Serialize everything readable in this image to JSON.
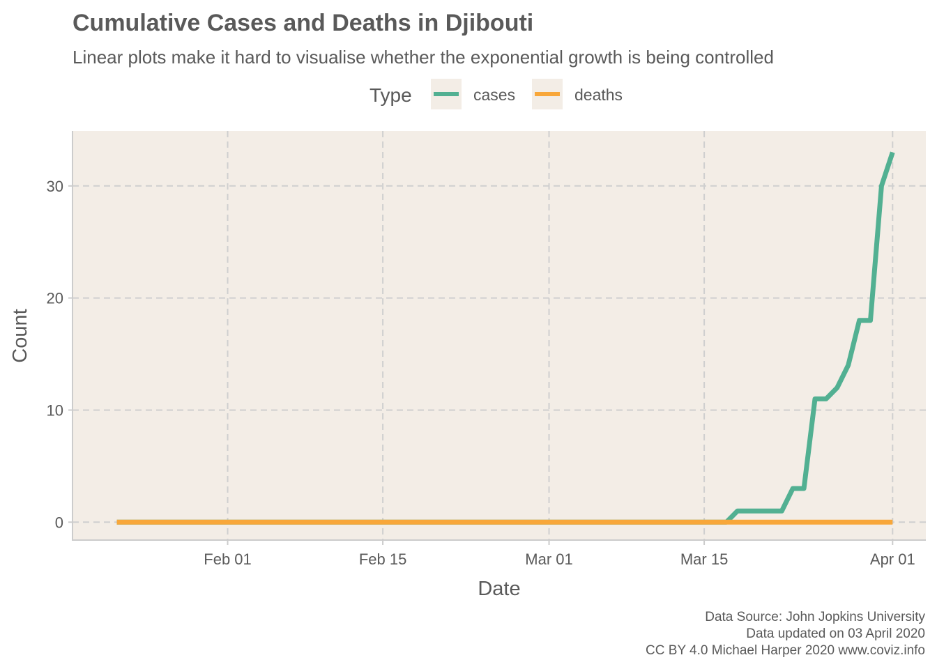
{
  "chart_data": {
    "type": "line",
    "title": "Cumulative Cases and Deaths in Djibouti",
    "subtitle": "Linear plots make it hard to visualise whether the exponential growth is being controlled",
    "xlabel": "Date",
    "ylabel": "Count",
    "legend": {
      "title": "Type",
      "position": "top"
    },
    "xlim": [
      "2020-01-18",
      "2020-04-04"
    ],
    "ylim": [
      -1.6,
      34.9
    ],
    "x_ticks": [
      {
        "date": "2020-02-01",
        "label": "Feb 01"
      },
      {
        "date": "2020-02-15",
        "label": "Feb 15"
      },
      {
        "date": "2020-03-01",
        "label": "Mar 01"
      },
      {
        "date": "2020-03-15",
        "label": "Mar 15"
      },
      {
        "date": "2020-04-01",
        "label": "Apr 01"
      }
    ],
    "y_ticks": [
      0,
      10,
      20,
      30
    ],
    "grid": true,
    "series": [
      {
        "name": "cases",
        "color": "#52b092",
        "points": [
          [
            "2020-01-22",
            0
          ],
          [
            "2020-03-17",
            0
          ],
          [
            "2020-03-18",
            1
          ],
          [
            "2020-03-22",
            1
          ],
          [
            "2020-03-23",
            3
          ],
          [
            "2020-03-24",
            3
          ],
          [
            "2020-03-25",
            11
          ],
          [
            "2020-03-26",
            11
          ],
          [
            "2020-03-27",
            12
          ],
          [
            "2020-03-28",
            14
          ],
          [
            "2020-03-29",
            18
          ],
          [
            "2020-03-30",
            18
          ],
          [
            "2020-03-31",
            30
          ],
          [
            "2020-04-01",
            33
          ]
        ]
      },
      {
        "name": "deaths",
        "color": "#f8a73a",
        "points": [
          [
            "2020-01-22",
            0
          ],
          [
            "2020-04-01",
            0
          ]
        ]
      }
    ],
    "caption": [
      "Data Source: John Jopkins University",
      "Data updated on 03 April 2020",
      "CC BY 4.0 Michael Harper 2020 www.coviz.info"
    ],
    "panel_color": "#f3ede6"
  }
}
